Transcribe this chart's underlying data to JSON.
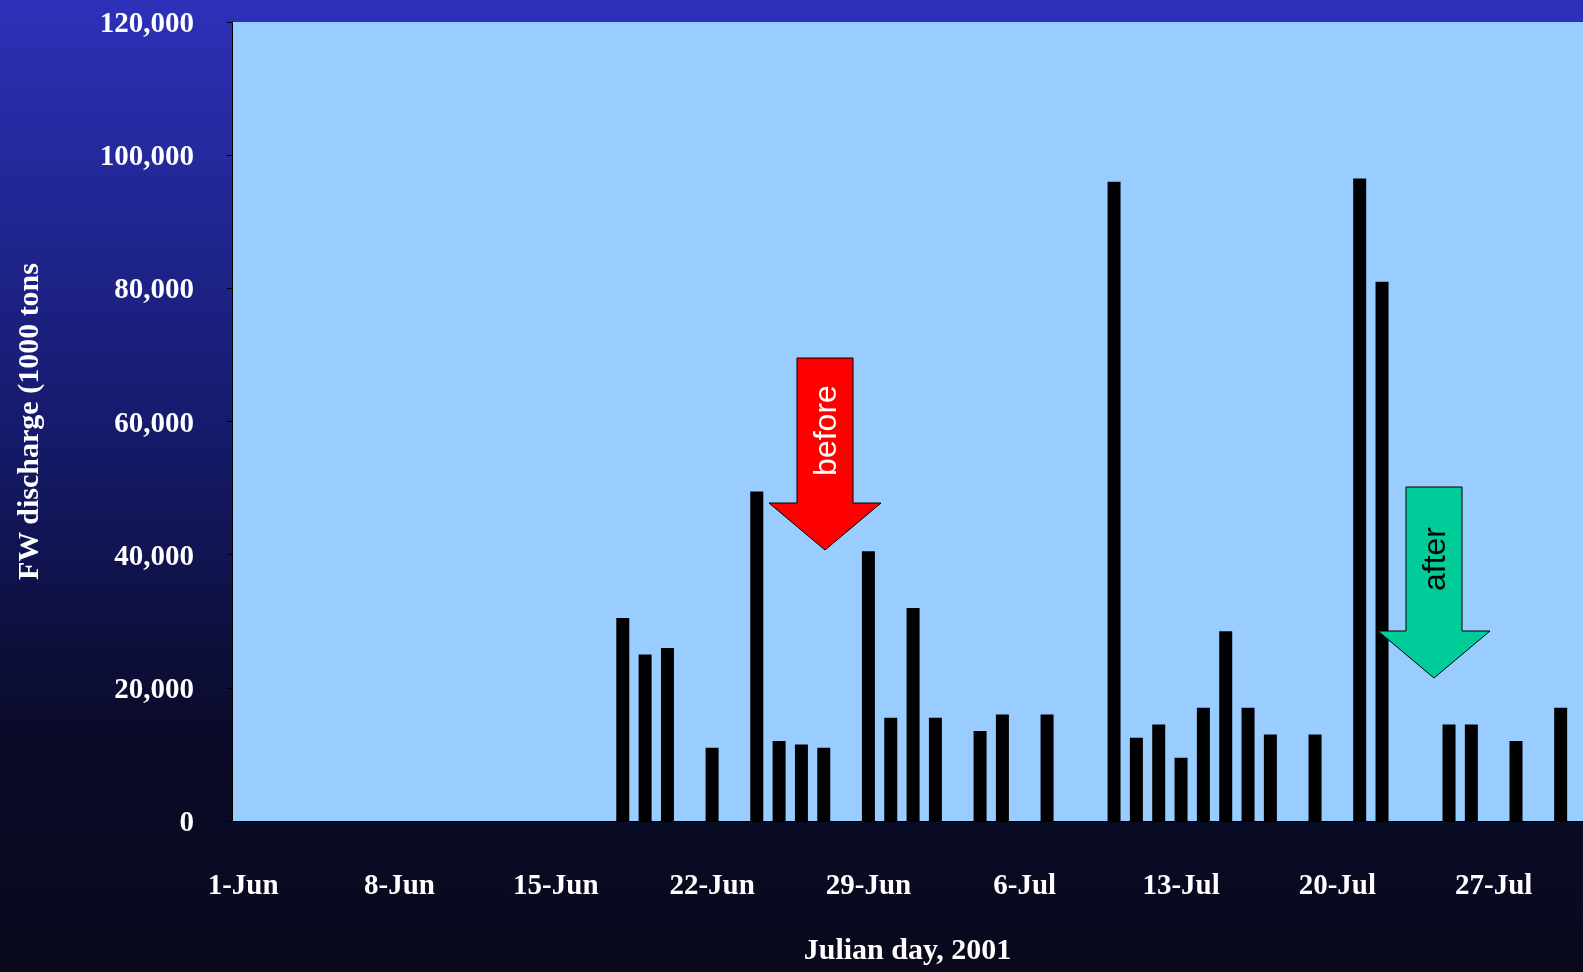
{
  "chart_data": {
    "type": "bar",
    "xlabel": "Julian day, 2001",
    "ylabel": "FW discharge (1000 tons",
    "x": [
      "2001-06-18",
      "2001-06-19",
      "2001-06-20",
      "2001-06-22",
      "2001-06-24",
      "2001-06-25",
      "2001-06-26",
      "2001-06-27",
      "2001-06-29",
      "2001-06-30",
      "2001-07-01",
      "2001-07-02",
      "2001-07-04",
      "2001-07-05",
      "2001-07-07",
      "2001-07-10",
      "2001-07-11",
      "2001-07-12",
      "2001-07-13",
      "2001-07-14",
      "2001-07-15",
      "2001-07-16",
      "2001-07-17",
      "2001-07-19",
      "2001-07-21",
      "2001-07-22",
      "2001-07-25",
      "2001-07-26",
      "2001-07-28",
      "2001-07-30"
    ],
    "values": [
      30500,
      25000,
      26000,
      11000,
      49500,
      12000,
      11500,
      11000,
      40500,
      15500,
      32000,
      15500,
      13500,
      16000,
      16000,
      96000,
      12500,
      14500,
      9500,
      17000,
      28500,
      17000,
      13000,
      13000,
      96500,
      81000,
      14500,
      14500,
      12000,
      17000
    ],
    "color": "#000000",
    "xlim": [
      "2001-05-31T12:00",
      "2001-07-31T00:00"
    ],
    "xticks": [
      {
        "value": "2001-06-01",
        "label": "1-Jun"
      },
      {
        "value": "2001-06-08",
        "label": "8-Jun"
      },
      {
        "value": "2001-06-15",
        "label": "15-Jun"
      },
      {
        "value": "2001-06-22",
        "label": "22-Jun"
      },
      {
        "value": "2001-06-29",
        "label": "29-Jun"
      },
      {
        "value": "2001-07-06",
        "label": "6-Jul"
      },
      {
        "value": "2001-07-13",
        "label": "13-Jul"
      },
      {
        "value": "2001-07-20",
        "label": "20-Jul"
      },
      {
        "value": "2001-07-27",
        "label": "27-Jul"
      }
    ],
    "ylim": [
      0,
      120000
    ],
    "yticks": [
      {
        "value": 0,
        "label": "0"
      },
      {
        "value": 20000,
        "label": "20,000"
      },
      {
        "value": 40000,
        "label": "40,000"
      },
      {
        "value": 60000,
        "label": "60,000"
      },
      {
        "value": 80000,
        "label": "80,000"
      },
      {
        "value": 100000,
        "label": "100,000"
      },
      {
        "value": 120000,
        "label": "120,000"
      }
    ],
    "annotations": [
      "before",
      "after"
    ],
    "grid": false
  }
}
